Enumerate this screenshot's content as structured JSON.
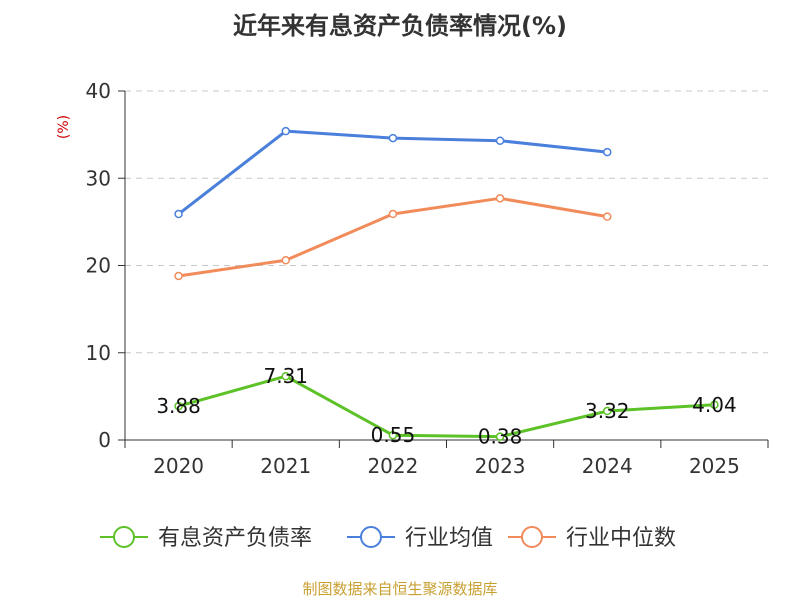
{
  "chart_data": {
    "type": "line",
    "title": "近年来有息资产负债率情况(%)",
    "ylabel": "(%)",
    "xlabel": "",
    "categories": [
      "2020",
      "2021",
      "2022",
      "2023",
      "2024",
      "2025"
    ],
    "ylim": [
      0,
      40
    ],
    "yticks": [
      0,
      10,
      20,
      30,
      40
    ],
    "grid": true,
    "legend_position": "bottom",
    "series": [
      {
        "name": "有息资产负债率",
        "color": "#5cc227",
        "values": [
          3.88,
          7.31,
          0.55,
          0.38,
          3.32,
          4.04
        ],
        "labels": [
          "3.88",
          "7.31",
          "0.55",
          "0.38",
          "3.32",
          "4.04"
        ]
      },
      {
        "name": "行业均值",
        "color": "#4a7fdc",
        "values": [
          25.9,
          35.4,
          34.6,
          34.3,
          33.0,
          null
        ]
      },
      {
        "name": "行业中位数",
        "color": "#f28b5a",
        "values": [
          18.8,
          20.6,
          25.9,
          27.7,
          25.6,
          null
        ]
      }
    ]
  },
  "footer": {
    "source": "制图数据来自恒生聚源数据库"
  },
  "colors": {
    "title": "#333333",
    "ylabel": "#cc0000",
    "grid": "#c8c8c8",
    "axis": "#333333",
    "footer": "#c8a032"
  }
}
